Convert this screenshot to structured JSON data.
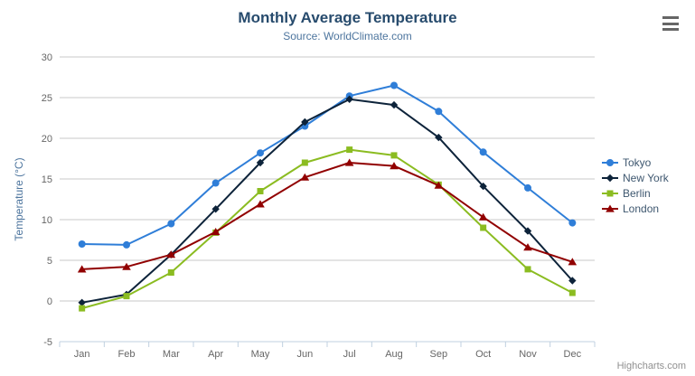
{
  "chart": {
    "title": "Monthly Average Temperature",
    "subtitle": "Source: WorldClimate.com",
    "credits": "Highcharts.com"
  },
  "chart_data": {
    "type": "line",
    "title": "Monthly Average Temperature",
    "subtitle": "Source: WorldClimate.com",
    "categories": [
      "Jan",
      "Feb",
      "Mar",
      "Apr",
      "May",
      "Jun",
      "Jul",
      "Aug",
      "Sep",
      "Oct",
      "Nov",
      "Dec"
    ],
    "series": [
      {
        "name": "Tokyo",
        "color": "#2f7ed8",
        "marker": "circle",
        "values": [
          7.0,
          6.9,
          9.5,
          14.5,
          18.2,
          21.5,
          25.2,
          26.5,
          23.3,
          18.3,
          13.9,
          9.6
        ]
      },
      {
        "name": "New York",
        "color": "#0d233a",
        "marker": "diamond",
        "values": [
          -0.2,
          0.8,
          5.7,
          11.3,
          17.0,
          22.0,
          24.8,
          24.1,
          20.1,
          14.1,
          8.6,
          2.5
        ]
      },
      {
        "name": "Berlin",
        "color": "#8bbc21",
        "marker": "square",
        "values": [
          -0.9,
          0.6,
          3.5,
          8.4,
          13.5,
          17.0,
          18.6,
          17.9,
          14.3,
          9.0,
          3.9,
          1.0
        ]
      },
      {
        "name": "London",
        "color": "#910000",
        "marker": "triangle",
        "values": [
          3.9,
          4.2,
          5.7,
          8.5,
          11.9,
          15.2,
          17.0,
          16.6,
          14.2,
          10.3,
          6.6,
          4.8
        ]
      }
    ],
    "xlabel": "",
    "ylabel": "Temperature (°C)",
    "ylim": [
      -5,
      30
    ],
    "yticks": [
      -5,
      0,
      5,
      10,
      15,
      20,
      25,
      30
    ],
    "grid": true,
    "legend_position": "right"
  },
  "colors": {
    "title": "#274b6d",
    "subtitle": "#4d759e",
    "axis_label": "#666666",
    "axis_title": "#4d759e",
    "gridline": "#c8c8c8",
    "axis_line": "#c0d0e0",
    "legend_text": "#3e576f",
    "credits": "#909090"
  }
}
